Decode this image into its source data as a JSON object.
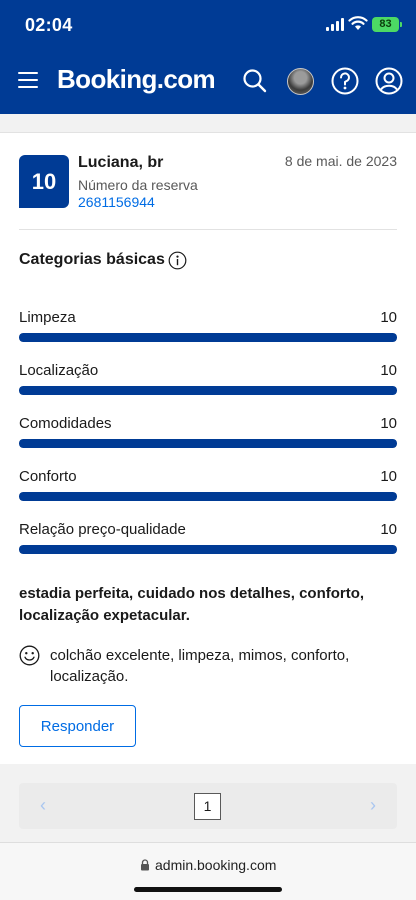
{
  "status_bar": {
    "time": "02:04",
    "battery": "83"
  },
  "header": {
    "logo": "Booking.com"
  },
  "review": {
    "score": "10",
    "guest_name": "Luciana, br",
    "date": "8 de mai. de 2023",
    "reservation_label": "Número da reserva",
    "reservation_number": "2681156944"
  },
  "categories": {
    "title": "Categorias básicas",
    "items": [
      {
        "label": "Limpeza",
        "value": "10",
        "fraction": 1.0
      },
      {
        "label": "Localização",
        "value": "10",
        "fraction": 1.0
      },
      {
        "label": "Comodidades",
        "value": "10",
        "fraction": 1.0
      },
      {
        "label": "Conforto",
        "value": "10",
        "fraction": 1.0
      },
      {
        "label": "Relação preço-qualidade",
        "value": "10",
        "fraction": 1.0
      }
    ]
  },
  "comment": {
    "title": "estadia perfeita, cuidado nos detalhes, conforto, localização expetacular.",
    "positive": "colchão excelente, limpeza, mimos, conforto, localização."
  },
  "actions": {
    "reply_label": "Responder"
  },
  "pagination": {
    "current_page": "1",
    "prev": "‹",
    "next": "›"
  },
  "browser": {
    "url": "admin.booking.com"
  },
  "colors": {
    "brand": "#003b95",
    "link": "#006ce4"
  }
}
